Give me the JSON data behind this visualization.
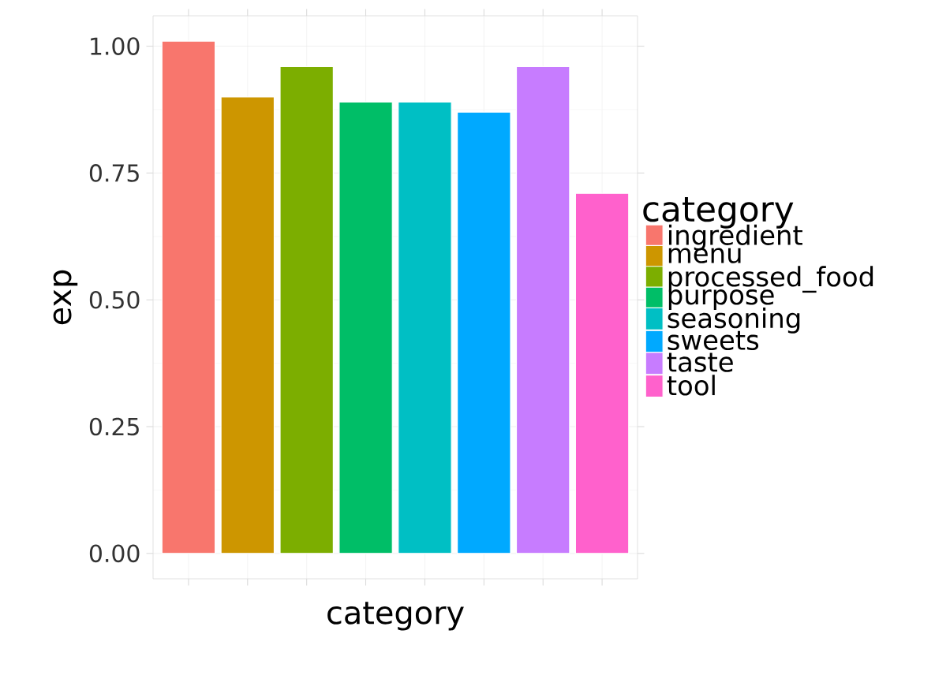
{
  "chart_data": {
    "type": "bar",
    "xlabel": "category",
    "ylabel": "exp",
    "legend_title": "category",
    "categories": [
      null,
      null,
      null,
      null,
      null,
      null,
      null,
      null
    ],
    "series": [
      {
        "name": "ingredient",
        "color": "#f8766d",
        "values": [
          1.01,
          null,
          null,
          null,
          null,
          null,
          null,
          null
        ]
      },
      {
        "name": "menu",
        "color": "#cd9600",
        "values": [
          null,
          0.9,
          null,
          null,
          null,
          null,
          null,
          null
        ]
      },
      {
        "name": "processed_food",
        "color": "#7cae00",
        "values": [
          null,
          null,
          0.96,
          null,
          null,
          null,
          null,
          null
        ]
      },
      {
        "name": "purpose",
        "color": "#00be67",
        "values": [
          null,
          null,
          null,
          0.89,
          null,
          null,
          null,
          null
        ]
      },
      {
        "name": "seasoning",
        "color": "#00bfc4",
        "values": [
          null,
          null,
          null,
          null,
          0.89,
          null,
          null,
          null
        ]
      },
      {
        "name": "sweets",
        "color": "#00a9ff",
        "values": [
          null,
          null,
          null,
          null,
          null,
          0.87,
          null,
          null
        ]
      },
      {
        "name": "taste",
        "color": "#c77cff",
        "values": [
          null,
          null,
          null,
          null,
          null,
          null,
          0.96,
          null
        ]
      },
      {
        "name": "tool",
        "color": "#ff61cc",
        "values": [
          null,
          null,
          null,
          null,
          null,
          null,
          null,
          0.71
        ]
      }
    ],
    "ylim": [
      -0.05,
      1.06
    ],
    "yticks": [
      {
        "value": 0,
        "label": "0.00"
      },
      {
        "value": 0.25,
        "label": "0.25"
      },
      {
        "value": 0.5,
        "label": "0.50"
      },
      {
        "value": 0.75,
        "label": "0.75"
      },
      {
        "value": 1,
        "label": "1.00"
      }
    ],
    "grid": true,
    "legend": "right",
    "tick_labels": "y"
  }
}
